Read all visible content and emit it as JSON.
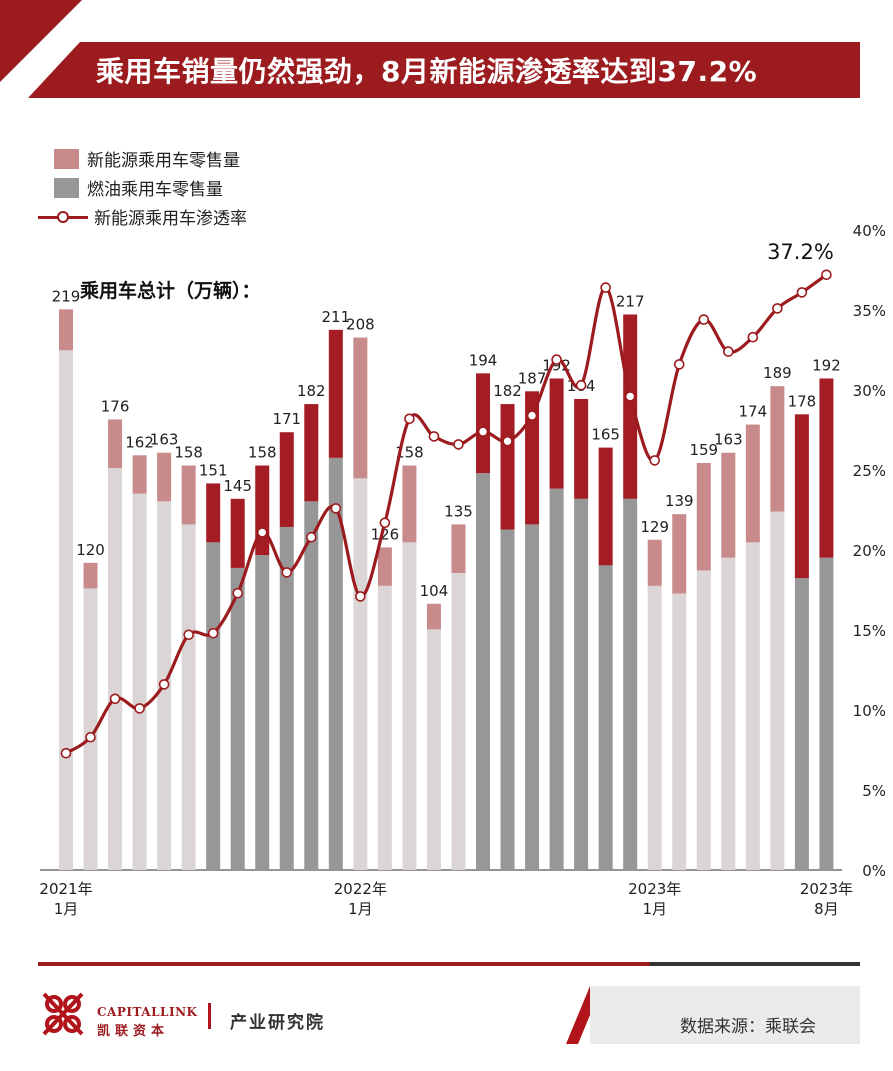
{
  "title": "乘用车销量仍然强劲，8月新能源渗透率达到37.2%",
  "legend": {
    "nev_retail": "新能源乘用车零售量",
    "ice_retail": "燃油乘用车零售量",
    "nev_penetration": "新能源乘用车渗透率"
  },
  "subtitle": "乘用车总计（万辆）：",
  "source": "数据来源：乘联会",
  "brand": {
    "name_en": "CAPITALLINK",
    "name_cn": "凯联资本",
    "department": "产业研究院"
  },
  "colors": {
    "brand_red": "#9c1b1f",
    "nev_dark": "#a51d24",
    "nev_light": "#c98a8c",
    "ice_dark": "#979797",
    "ice_light": "#dcd5d5"
  },
  "chart_data": {
    "type": "bar",
    "stacked": true,
    "categories": [
      "2021-01",
      "2021-02",
      "2021-03",
      "2021-04",
      "2021-05",
      "2021-06",
      "2021-07",
      "2021-08",
      "2021-09",
      "2021-10",
      "2021-11",
      "2021-12",
      "2022-01",
      "2022-02",
      "2022-03",
      "2022-04",
      "2022-05",
      "2022-06",
      "2022-07",
      "2022-08",
      "2022-09",
      "2022-10",
      "2022-11",
      "2022-12",
      "2023-01",
      "2023-02",
      "2023-03",
      "2023-04",
      "2023-05",
      "2023-06",
      "2023-07",
      "2023-08"
    ],
    "x_tick_labels": [
      {
        "index": 0,
        "line1": "2021年",
        "line2": "1月"
      },
      {
        "index": 12,
        "line1": "2022年",
        "line2": "1月"
      },
      {
        "index": 24,
        "line1": "2023年",
        "line2": "1月"
      },
      {
        "index": 31,
        "line1": "2023年",
        "line2": "8月"
      }
    ],
    "totals": [
      219,
      120,
      176,
      162,
      163,
      158,
      151,
      145,
      158,
      171,
      182,
      211,
      208,
      126,
      158,
      104,
      135,
      194,
      182,
      187,
      192,
      184,
      165,
      217,
      129,
      139,
      159,
      163,
      174,
      189,
      178,
      192
    ],
    "total_labels": [
      "219",
      "120",
      "176",
      "162",
      "163",
      "158",
      "151",
      "145",
      "158",
      "171",
      "182",
      "211",
      "208",
      "126",
      "158",
      "104",
      "135",
      "194",
      "182",
      "187",
      "192",
      "184",
      "165",
      "217",
      "129",
      "139",
      "159",
      "163",
      "174",
      "189",
      "178",
      "192"
    ],
    "series": [
      {
        "name": "燃油乘用车零售量",
        "values": [
          203,
          110,
          157,
          147,
          144,
          135,
          128,
          118,
          123,
          134,
          144,
          161,
          153,
          111,
          128,
          94,
          116,
          155,
          133,
          135,
          149,
          145,
          119,
          145,
          111,
          108,
          117,
          122,
          128,
          140,
          114,
          122
        ]
      },
      {
        "name": "新能源乘用车零售量",
        "values": [
          16,
          10,
          19,
          15,
          19,
          23,
          23,
          27,
          35,
          37,
          38,
          50,
          55,
          15,
          30,
          10,
          19,
          39,
          49,
          52,
          43,
          39,
          46,
          72,
          18,
          31,
          42,
          41,
          46,
          49,
          64,
          70
        ]
      }
    ],
    "highlight_months": [
      6,
      7,
      8,
      9,
      10,
      11,
      17,
      18,
      19,
      20,
      21,
      22,
      23,
      30,
      31
    ],
    "line": {
      "name": "新能源乘用车渗透率",
      "axis": "right",
      "values": [
        7.3,
        8.3,
        10.7,
        10.1,
        11.6,
        14.7,
        14.8,
        17.3,
        21.1,
        18.6,
        20.8,
        22.6,
        17.1,
        21.7,
        28.2,
        27.1,
        26.6,
        27.4,
        26.8,
        28.4,
        31.9,
        30.3,
        36.4,
        29.6,
        25.6,
        31.6,
        34.4,
        32.4,
        33.3,
        35.1,
        36.1,
        37.2
      ]
    },
    "line_label": "37.2%",
    "y_right": {
      "min": 0,
      "max": 40,
      "ticks": [
        "0%",
        "5%",
        "10%",
        "15%",
        "20%",
        "25%",
        "30%",
        "35%",
        "40%"
      ]
    },
    "y_left": {
      "min": 0,
      "max": 250,
      "shown": false
    }
  }
}
